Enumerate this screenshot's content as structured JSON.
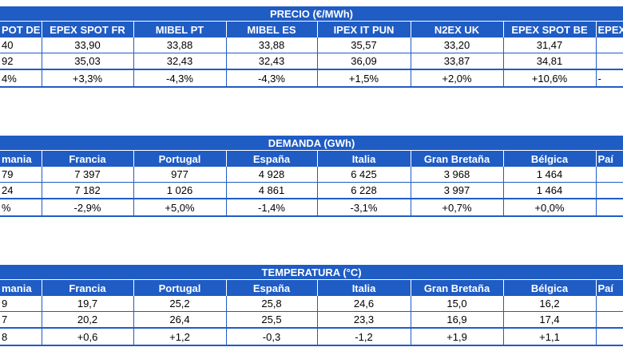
{
  "tables": [
    {
      "title": "PRECIO (€/MWh)",
      "headers": [
        "POT DE",
        "EPEX SPOT FR",
        "MIBEL PT",
        "MIBEL ES",
        "IPEX IT PUN",
        "N2EX UK",
        "EPEX SPOT BE",
        "EPEX"
      ],
      "rows": [
        [
          "40",
          "33,90",
          "33,88",
          "33,88",
          "35,57",
          "33,20",
          "31,47"
        ],
        [
          "92",
          "35,03",
          "32,43",
          "32,43",
          "36,09",
          "33,87",
          "34,81"
        ],
        [
          "4%",
          "+3,3%",
          "-4,3%",
          "-4,3%",
          "+1,5%",
          "+2,0%",
          "+10,6%",
          "-"
        ]
      ]
    },
    {
      "title": "DEMANDA (GWh)",
      "headers": [
        "mania",
        "Francia",
        "Portugal",
        "España",
        "Italia",
        "Gran Bretaña",
        "Bélgica",
        "Paí"
      ],
      "rows": [
        [
          "79",
          "7 397",
          "977",
          "4 928",
          "6 425",
          "3 968",
          "1 464"
        ],
        [
          "24",
          "7 182",
          "1 026",
          "4 861",
          "6 228",
          "3 997",
          "1 464"
        ],
        [
          "%",
          "-2,9%",
          "+5,0%",
          "-1,4%",
          "-3,1%",
          "+0,7%",
          "+0,0%"
        ]
      ]
    },
    {
      "title": "TEMPERATURA (°C)",
      "headers": [
        "mania",
        "Francia",
        "Portugal",
        "España",
        "Italia",
        "Gran Bretaña",
        "Bélgica",
        "Paí"
      ],
      "rows": [
        [
          "9",
          "19,7",
          "25,2",
          "25,8",
          "24,6",
          "15,0",
          "16,2"
        ],
        [
          "7",
          "20,2",
          "26,4",
          "25,5",
          "23,3",
          "16,9",
          "17,4"
        ],
        [
          "8",
          "+0,6",
          "+1,2",
          "-0,3",
          "-1,2",
          "+1,9",
          "+1,1"
        ]
      ]
    }
  ]
}
